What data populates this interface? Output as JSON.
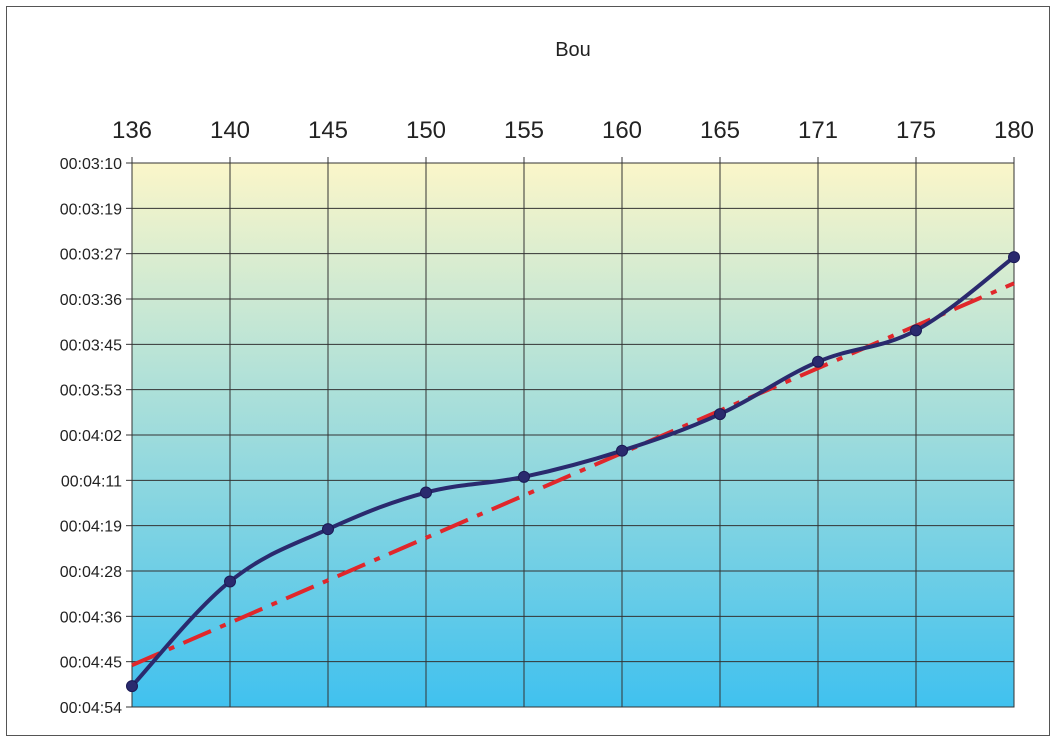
{
  "chart_data": {
    "type": "line",
    "title": "Bou",
    "x_axis_position": "top",
    "y_axis_inverted": true,
    "x": [
      136,
      140,
      145,
      150,
      155,
      160,
      165,
      171,
      175,
      180
    ],
    "x_tick_labels": [
      "136",
      "140",
      "145",
      "150",
      "155",
      "160",
      "165",
      "171",
      "175",
      "180"
    ],
    "y_tick_labels": [
      "00:03:10",
      "00:03:19",
      "00:03:27",
      "00:03:36",
      "00:03:45",
      "00:03:53",
      "00:04:02",
      "00:04:11",
      "00:04:19",
      "00:04:28",
      "00:04:36",
      "00:04:45",
      "00:04:54"
    ],
    "ylim_seconds": [
      190,
      294
    ],
    "grid": true,
    "series": [
      {
        "values": [
          "00:04:50",
          "00:04:30",
          "00:04:20",
          "00:04:13",
          "00:04:10",
          "00:04:05",
          "00:03:58",
          "00:03:48",
          "00:03:42",
          "00:03:28"
        ],
        "values_seconds": [
          290,
          270,
          260,
          253,
          250,
          245,
          238,
          228,
          222,
          208
        ],
        "color": "#2a2a6e",
        "style": "smooth line with markers"
      },
      {
        "trendline": true,
        "values_seconds_at_ends": [
          286,
          213
        ],
        "color": "#e0272b",
        "style": "dash-dot"
      }
    ],
    "background_gradient": [
      "#fbf6c9",
      "#40c1ef"
    ]
  }
}
